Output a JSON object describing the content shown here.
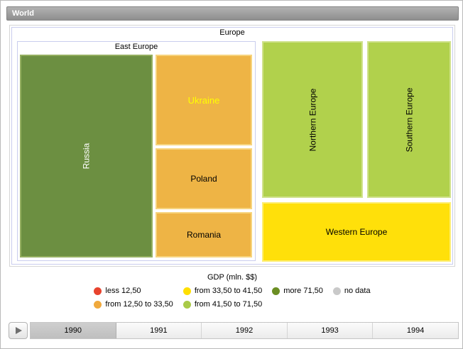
{
  "window": {
    "breadcrumb": "World"
  },
  "treemap": {
    "groups": {
      "europe": "Europe",
      "east_europe": "East Europe"
    },
    "tiles": {
      "russia": "Russia",
      "ukraine": "Ukraine",
      "poland": "Poland",
      "romania": "Romania",
      "northern_europe": "Northern Europe",
      "southern_europe": "Southern Europe",
      "western_europe": "Western Europe"
    }
  },
  "legend": {
    "title": "GDP (mln. $$)",
    "items": [
      {
        "label": "less 12,50",
        "color": "#e8432e"
      },
      {
        "label": "from 12,50 to 33,50",
        "color": "#f0a93d"
      },
      {
        "label": "from 33,50 to 41,50",
        "color": "#ffdf00"
      },
      {
        "label": "from 41,50 to 71,50",
        "color": "#a9ca48"
      },
      {
        "label": "more 71,50",
        "color": "#6b8e23"
      },
      {
        "label": "no data",
        "color": "#c9c9c9"
      }
    ]
  },
  "timeline": {
    "years": [
      "1990",
      "1991",
      "1992",
      "1993",
      "1994"
    ],
    "selected": "1990"
  },
  "chart_data": {
    "type": "treemap",
    "title": "GDP (mln. $$)",
    "root": "World",
    "nodes": [
      {
        "name": "Europe",
        "parent": "World"
      },
      {
        "name": "East Europe",
        "parent": "Europe"
      },
      {
        "name": "Russia",
        "parent": "East Europe",
        "legend_bin": "more 71,50",
        "color": "#6c8f41"
      },
      {
        "name": "Ukraine",
        "parent": "East Europe",
        "legend_bin": "from 12,50 to 33,50",
        "color": "#eeb445"
      },
      {
        "name": "Poland",
        "parent": "East Europe",
        "legend_bin": "from 12,50 to 33,50",
        "color": "#eeb445"
      },
      {
        "name": "Romania",
        "parent": "East Europe",
        "legend_bin": "from 12,50 to 33,50",
        "color": "#eeb445"
      },
      {
        "name": "Northern Europe",
        "parent": "Europe",
        "legend_bin": "from 41,50 to 71,50",
        "color": "#b1d14c"
      },
      {
        "name": "Southern Europe",
        "parent": "Europe",
        "legend_bin": "from 41,50 to 71,50",
        "color": "#b1d14c"
      },
      {
        "name": "Western Europe",
        "parent": "Europe",
        "legend_bin": "from 33,50 to 41,50",
        "color": "#ffe00a"
      }
    ],
    "legend_bins": [
      "less 12,50",
      "from 12,50 to 33,50",
      "from 33,50 to 41,50",
      "from 41,50 to 71,50",
      "more 71,50",
      "no data"
    ],
    "timeline_years": [
      "1990",
      "1991",
      "1992",
      "1993",
      "1994"
    ],
    "selected_year": "1990"
  }
}
